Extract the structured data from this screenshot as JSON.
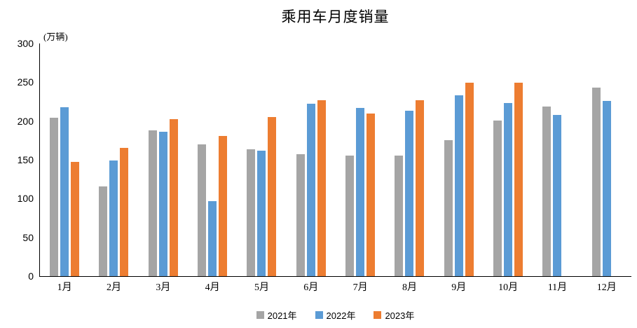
{
  "title": "乘用车月度销量",
  "y_axis_unit": "(万辆)",
  "colors": {
    "series_2021": "#A5A5A5",
    "series_2022": "#5B9BD5",
    "series_2023": "#ED7D31",
    "axis": "#000000",
    "text": "#000000",
    "background": "#FFFFFF"
  },
  "chart_data": {
    "type": "bar",
    "title": "乘用车月度销量",
    "ylabel": "(万辆)",
    "xlabel": "",
    "categories": [
      "1月",
      "2月",
      "3月",
      "4月",
      "5月",
      "6月",
      "7月",
      "8月",
      "9月",
      "10月",
      "11月",
      "12月"
    ],
    "series": [
      {
        "name": "2021年",
        "color": "#A5A5A5",
        "values": [
          204,
          116,
          188,
          170,
          164,
          157,
          155,
          155,
          175,
          201,
          219,
          243
        ]
      },
      {
        "name": "2022年",
        "color": "#5B9BD5",
        "values": [
          218,
          149,
          186,
          97,
          162,
          222,
          217,
          213,
          233,
          223,
          208,
          226
        ]
      },
      {
        "name": "2023年",
        "color": "#ED7D31",
        "values": [
          147,
          165,
          202,
          181,
          205,
          227,
          210,
          227,
          249,
          249,
          null,
          null
        ]
      }
    ],
    "ylim": [
      0,
      300
    ],
    "yticks": [
      0,
      50,
      100,
      150,
      200,
      250,
      300
    ],
    "grid": false,
    "legend_position": "bottom"
  }
}
